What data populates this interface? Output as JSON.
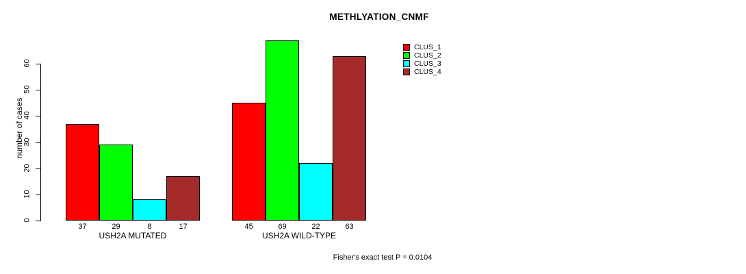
{
  "chart_data": {
    "type": "bar",
    "title": "METHLYATION_CNMF",
    "ylabel": "number of cases",
    "xlabel": "",
    "ylim": [
      0,
      60
    ],
    "yticks": [
      0,
      10,
      20,
      30,
      40,
      50,
      60
    ],
    "grid": false,
    "legend_position": "top-right",
    "bar_value_labels": true,
    "categories": [
      "USH2A MUTATED",
      "USH2A WILD-TYPE"
    ],
    "groups": [
      {
        "label": "USH2A MUTATED",
        "values": [
          37,
          29,
          8,
          17
        ]
      },
      {
        "label": "USH2A WILD-TYPE",
        "values": [
          45,
          69,
          22,
          63
        ]
      }
    ],
    "series": [
      {
        "name": "CLUS_1",
        "color": "#FF0000"
      },
      {
        "name": "CLUS_2",
        "color": "#00FF00"
      },
      {
        "name": "CLUS_3",
        "color": "#00FFFF"
      },
      {
        "name": "CLUS_4",
        "color": "#A52A2A"
      }
    ],
    "annotation": "Fisher's exact test P = 0.0104"
  }
}
